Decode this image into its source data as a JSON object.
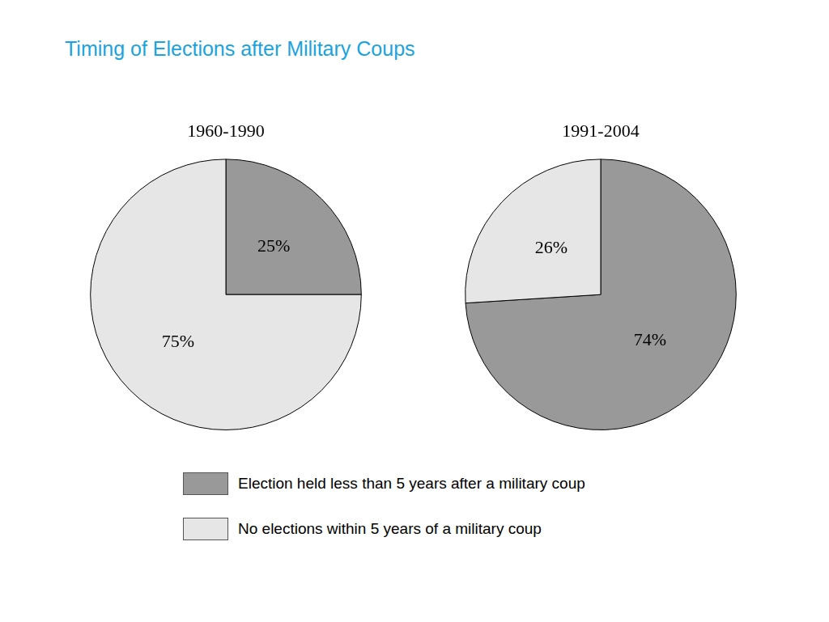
{
  "title": "Timing of Elections after Military Coups",
  "chart_data": [
    {
      "type": "pie",
      "title": "1960-1990",
      "categories": [
        "Election held less than 5 years after a military coup",
        "No elections within 5 years of a military coup"
      ],
      "values": [
        25,
        75
      ],
      "value_labels": [
        "25%",
        "75%"
      ],
      "colors": [
        "#999999",
        "#e6e6e6"
      ],
      "data_labels": true,
      "legend": "bottom"
    },
    {
      "type": "pie",
      "title": "1991-2004",
      "categories": [
        "Election held less than 5 years after a military coup",
        "No elections within 5 years of a military coup"
      ],
      "values": [
        74,
        26
      ],
      "value_labels": [
        "74%",
        "26%"
      ],
      "colors": [
        "#999999",
        "#e6e6e6"
      ],
      "data_labels": true,
      "legend": "bottom"
    }
  ]
}
